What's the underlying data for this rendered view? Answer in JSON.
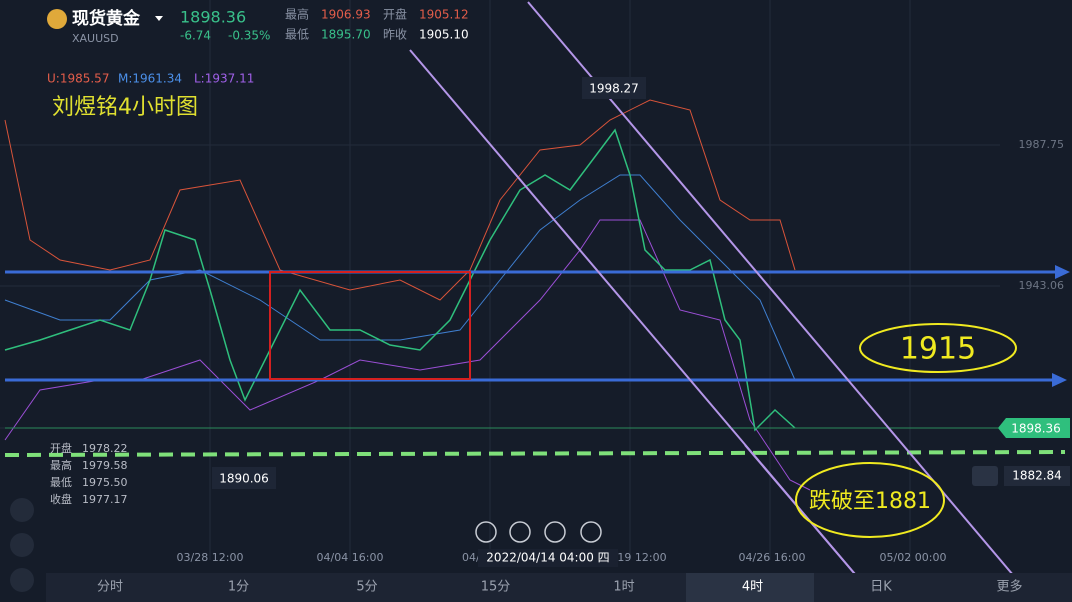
{
  "header": {
    "name": "现货黄金",
    "symbol": "XAUUSD",
    "price": "1898.36",
    "change": "-6.74",
    "percent": "-0.35%",
    "stats": [
      {
        "label": "最高",
        "value": "1906.93"
      },
      {
        "label": "开盘",
        "value": "1905.12"
      },
      {
        "label": "最低",
        "value": "1895.70"
      },
      {
        "label": "昨收",
        "value": "1905.10"
      }
    ]
  },
  "indicator": {
    "upper": "U:1985.57",
    "middle": "M:1961.34",
    "lower": "L:1937.11"
  },
  "annotations": {
    "title": "刘煜铭4小时图",
    "level": "1915",
    "target": "跌破至1881"
  },
  "price_labels": {
    "high": "1998.27",
    "low": "1890.06",
    "current": "1898.36",
    "cursor": "1882.84"
  },
  "price_axis": [
    "1987.75",
    "1943.06"
  ],
  "ohlc": [
    {
      "label": "开盘",
      "value": "1978.22"
    },
    {
      "label": "最高",
      "value": "1979.58"
    },
    {
      "label": "最低",
      "value": "1975.50"
    },
    {
      "label": "收盘",
      "value": "1977.17"
    }
  ],
  "time_axis": [
    "03/28 12:00",
    "04/04 16:00",
    "04/1",
    "2022/04/14 04:00 四",
    "19 12:00",
    "04/26 16:00",
    "05/02 00:00"
  ],
  "tabs": [
    "分时",
    "1分",
    "5分",
    "15分",
    "1时",
    "4时",
    "日K",
    "更多"
  ]
}
